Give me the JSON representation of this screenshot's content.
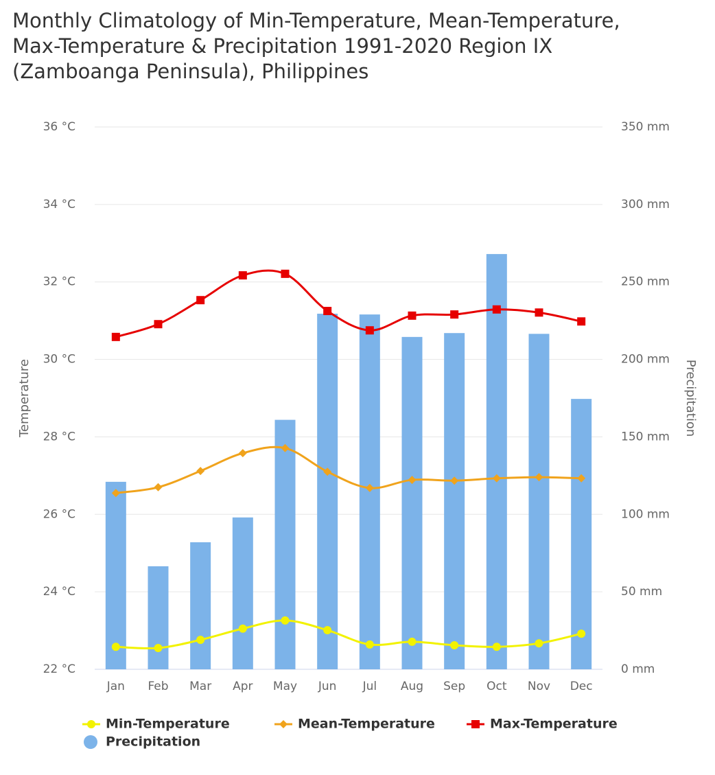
{
  "chart_data": {
    "type": "combo",
    "title": "Monthly Climatology of Min-Temperature, Mean-Temperature, Max-Temperature & Precipitation 1991-2020 Region IX (Zamboanga Peninsula), Philippines",
    "y_label": "Temperature",
    "y2_label": "Precipitation",
    "categories": [
      "Jan",
      "Feb",
      "Mar",
      "Apr",
      "May",
      "Jun",
      "Jul",
      "Aug",
      "Sep",
      "Oct",
      "Nov",
      "Dec"
    ],
    "ylim": [
      22,
      36
    ],
    "yticks": [
      {
        "value": 22,
        "label": "22 °C"
      },
      {
        "value": 24,
        "label": "24 °C"
      },
      {
        "value": 26,
        "label": "26 °C"
      },
      {
        "value": 28,
        "label": "28 °C"
      },
      {
        "value": 30,
        "label": "30 °C"
      },
      {
        "value": 32,
        "label": "32 °C"
      },
      {
        "value": 34,
        "label": "34 °C"
      },
      {
        "value": 36,
        "label": "36 °C"
      }
    ],
    "y2lim": [
      0,
      350
    ],
    "y2ticks": [
      {
        "value": 0,
        "label": "0 mm"
      },
      {
        "value": 50,
        "label": "50 mm"
      },
      {
        "value": 100,
        "label": "100 mm"
      },
      {
        "value": 150,
        "label": "150 mm"
      },
      {
        "value": 200,
        "label": "200 mm"
      },
      {
        "value": 250,
        "label": "250 mm"
      },
      {
        "value": 300,
        "label": "300 mm"
      },
      {
        "value": 350,
        "label": "350 mm"
      }
    ],
    "grid": true,
    "series": [
      {
        "name": "Min-Temperature",
        "type": "line",
        "marker": "circle",
        "color": "#f2f200",
        "values": [
          22.58,
          22.55,
          22.76,
          23.05,
          23.26,
          23.01,
          22.64,
          22.71,
          22.62,
          22.58,
          22.67,
          22.92
        ]
      },
      {
        "name": "Mean-Temperature",
        "type": "line",
        "marker": "diamond",
        "color": "#f0a31c",
        "values": [
          26.55,
          26.7,
          27.12,
          27.58,
          27.71,
          27.1,
          26.68,
          26.89,
          26.87,
          26.93,
          26.96,
          26.93
        ]
      },
      {
        "name": "Max-Temperature",
        "type": "line",
        "marker": "square",
        "color": "#e60000",
        "values": [
          30.58,
          30.91,
          31.53,
          32.17,
          32.21,
          31.25,
          30.75,
          31.13,
          31.16,
          31.29,
          31.21,
          30.98
        ]
      },
      {
        "name": "Precipitation",
        "type": "bar",
        "axis": "y2",
        "color": "#7cb3e9",
        "values": [
          121,
          66.5,
          82,
          98,
          161,
          229.5,
          229,
          214.5,
          217,
          268,
          216.5,
          174.5
        ]
      }
    ]
  }
}
